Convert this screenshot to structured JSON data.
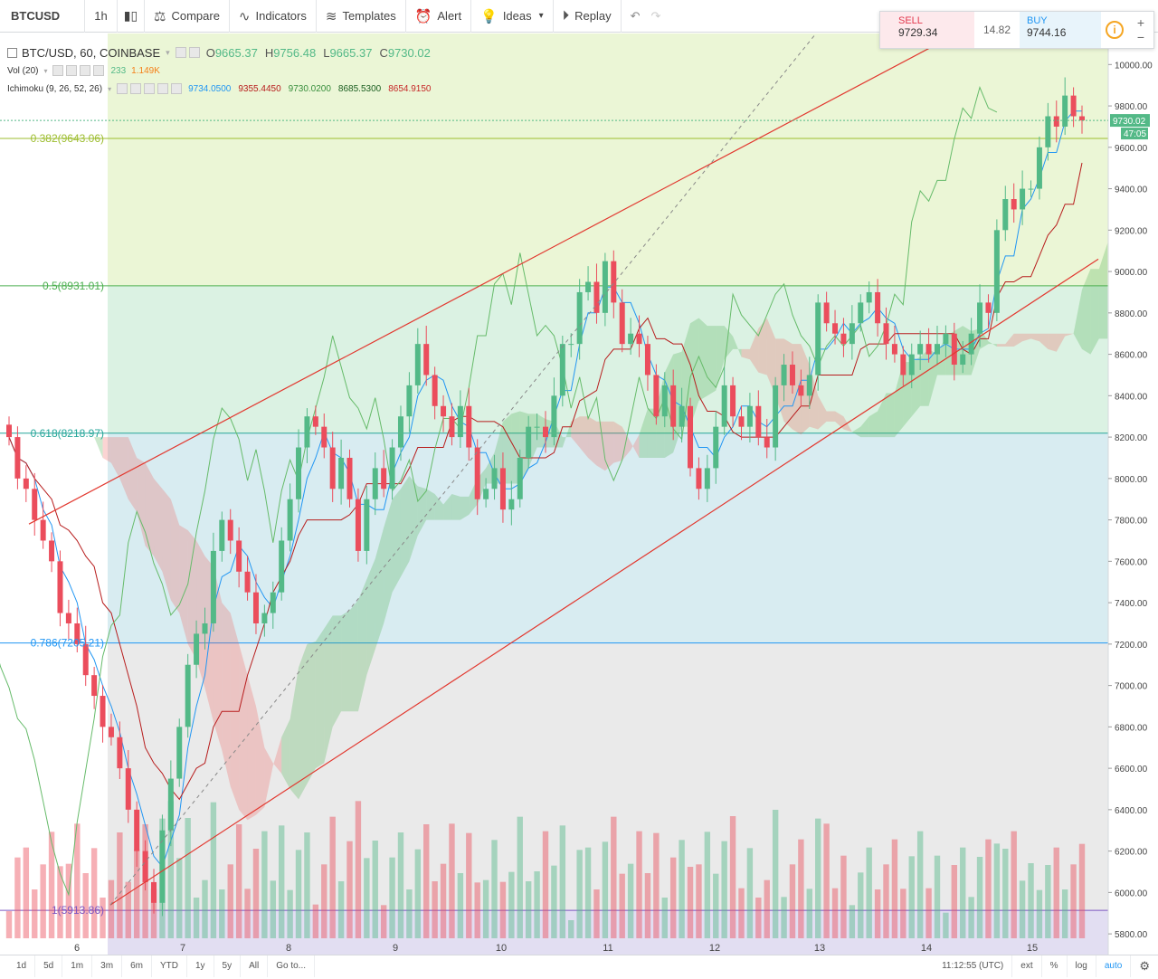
{
  "toolbar": {
    "symbol": "BTCUSD",
    "interval": "1h",
    "compare": "Compare",
    "indicators": "Indicators",
    "templates": "Templates",
    "alert": "Alert",
    "ideas": "Ideas",
    "replay": "Replay"
  },
  "legend": {
    "title": "BTC/USD, 60, COINBASE",
    "o_label": "O",
    "o": "9665.37",
    "h_label": "H",
    "h": "9756.48",
    "l_label": "L",
    "l": "9665.37",
    "c_label": "C",
    "c": "9730.02",
    "vol_label": "Vol (20)",
    "vol_value": "233",
    "vol_ma": "1.149K",
    "ichimoku_label": "Ichimoku (9, 26, 52, 26)",
    "ich1": "9734.0500",
    "ich2": "9355.4450",
    "ich3": "9730.0200",
    "ich4": "8685.5300",
    "ich5": "8654.9150"
  },
  "trade": {
    "sell_label": "SELL",
    "sell_price": "9729.34",
    "spread": "14.82",
    "buy_label": "BUY",
    "buy_price": "9744.16",
    "plus": "+",
    "minus": "−"
  },
  "fib": {
    "l1": "0.382(9643.06)",
    "l2": "0.5(8931.01)",
    "l3": "0.618(8218.97)",
    "l4": "0.786(7205.21)",
    "l5": "1(5913.86)"
  },
  "price_axis": {
    "ticks": [
      "10000.00",
      "9800.00",
      "9600.00",
      "9400.00",
      "9200.00",
      "9000.00",
      "8800.00",
      "8600.00",
      "8400.00",
      "8200.00",
      "8000.00",
      "7800.00",
      "7600.00",
      "7400.00",
      "7200.00",
      "7000.00",
      "6800.00",
      "6600.00",
      "6400.00",
      "6200.00",
      "6000.00",
      "5800.00"
    ],
    "last_price": "9730.02",
    "countdown": "47:05"
  },
  "time_axis": {
    "labels": [
      "6",
      "7",
      "8",
      "9",
      "10",
      "11",
      "12",
      "13",
      "14",
      "15"
    ]
  },
  "bottom": {
    "ranges": [
      "1d",
      "5d",
      "1m",
      "3m",
      "6m",
      "YTD",
      "1y",
      "5y",
      "All"
    ],
    "goto": "Go to...",
    "clock": "11:12:55 (UTC)",
    "ext": "ext",
    "pct": "%",
    "log": "log",
    "auto": "auto"
  },
  "colors": {
    "up": "#53b987",
    "down": "#eb4d5c",
    "trend": "#e2382f",
    "accent": "#2196f3"
  },
  "chart_data": {
    "type": "candlestick",
    "symbol": "BTC/USD",
    "exchange": "COINBASE",
    "interval_minutes": 60,
    "ylim": [
      5700,
      10150
    ],
    "last_ohlc": {
      "open": 9665.37,
      "high": 9756.48,
      "low": 9665.37,
      "close": 9730.02
    },
    "fib_levels": [
      {
        "ratio": 0.382,
        "price": 9643.06
      },
      {
        "ratio": 0.5,
        "price": 8931.01
      },
      {
        "ratio": 0.618,
        "price": 8218.97
      },
      {
        "ratio": 0.786,
        "price": 7205.21
      },
      {
        "ratio": 1,
        "price": 5913.86
      }
    ],
    "x_dates": [
      "6",
      "7",
      "8",
      "9",
      "10",
      "11",
      "12",
      "13",
      "14",
      "15"
    ],
    "closes": [
      8200,
      8000,
      7950,
      7800,
      7700,
      7600,
      7350,
      7300,
      7200,
      7050,
      6950,
      6800,
      6750,
      6600,
      6400,
      6200,
      6050,
      5950,
      6300,
      6550,
      6800,
      7100,
      7250,
      7300,
      7650,
      7800,
      7700,
      7550,
      7450,
      7300,
      7350,
      7450,
      7700,
      7900,
      8150,
      8300,
      8250,
      8150,
      7950,
      8100,
      7900,
      7650,
      7900,
      8050,
      7950,
      8150,
      8300,
      8450,
      8650,
      8500,
      8350,
      8300,
      8200,
      8350,
      8150,
      7900,
      7950,
      8050,
      7850,
      7900,
      8100,
      8250,
      8250,
      8200,
      8400,
      8650,
      8650,
      8900,
      8950,
      8800,
      9050,
      8850,
      8650,
      8700,
      8650,
      8500,
      8300,
      8450,
      8250,
      8350,
      8050,
      7950,
      8050,
      8250,
      8450,
      8300,
      8250,
      8350,
      8200,
      8150,
      8450,
      8550,
      8450,
      8400,
      8500,
      8850,
      8750,
      8700,
      8650,
      8750,
      8850,
      8900,
      8750,
      8650,
      8600,
      8500,
      8600,
      8650,
      8600,
      8650,
      8700,
      8550,
      8600,
      8700,
      8850,
      8800,
      9200,
      9350,
      9300,
      9400,
      9400,
      9600,
      9750,
      9700,
      9850,
      9750,
      9730
    ]
  }
}
